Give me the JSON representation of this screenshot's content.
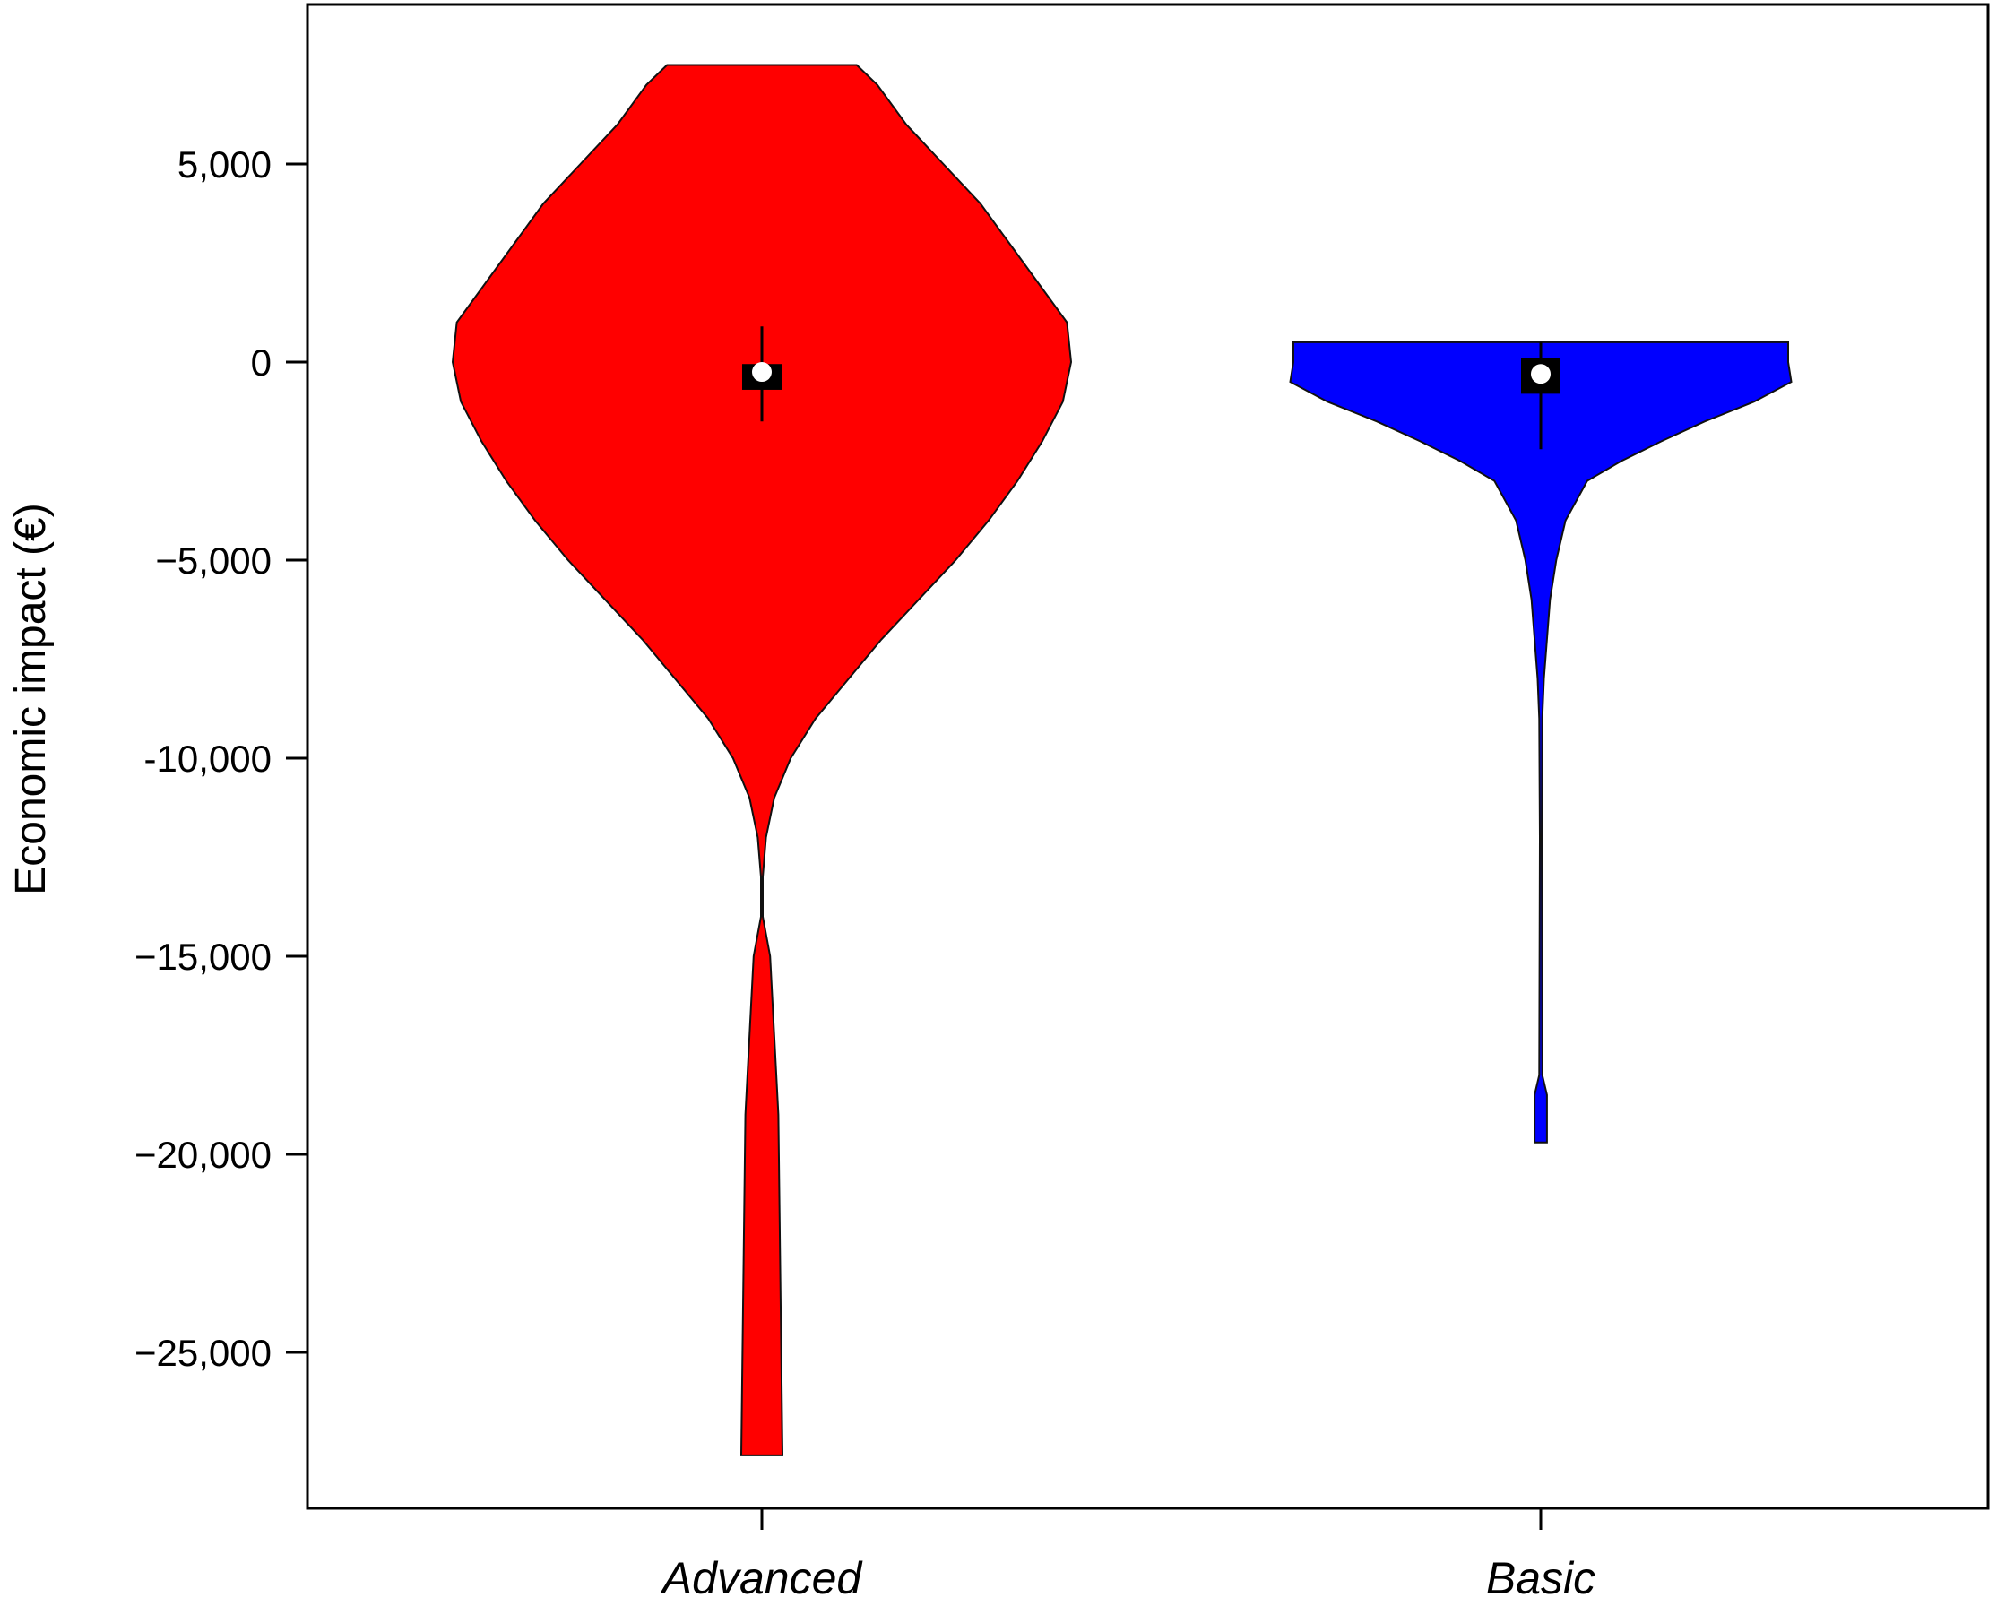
{
  "chart_data": {
    "type": "violin",
    "ylabel": "Economic impact (€)",
    "ylim": [
      -29000,
      9000
    ],
    "yticks": [
      5000,
      0,
      -5000,
      -10000,
      -15000,
      -20000,
      -25000
    ],
    "ytick_labels": [
      "5,000",
      "0",
      "−5,000",
      "-10,000",
      "−15,000",
      "−20,000",
      "−25,000"
    ],
    "grid": false,
    "categories": [
      "Advanced",
      "Basic"
    ],
    "series": [
      {
        "category": "Advanced",
        "color": "#ff0000",
        "min": -27600,
        "max": 7500,
        "median": -250,
        "q1": -700,
        "q3": -50,
        "whisker_low": -1500,
        "whisker_high": 900,
        "profile": [
          [
            7500,
            0.39
          ],
          [
            7000,
            0.34
          ],
          [
            6000,
            0.27
          ],
          [
            5000,
            0.18
          ],
          [
            4000,
            0.09
          ],
          [
            3000,
            0.02
          ],
          [
            2000,
            -0.05
          ],
          [
            1000,
            -0.12
          ],
          [
            0,
            -0.13
          ],
          [
            -1000,
            -0.11
          ],
          [
            -2000,
            -0.06
          ],
          [
            -3000,
            0.0
          ],
          [
            -4000,
            0.07
          ],
          [
            -5000,
            0.15
          ],
          [
            -6000,
            0.24
          ],
          [
            -7000,
            0.33
          ],
          [
            -8000,
            0.41
          ],
          [
            -9000,
            0.49
          ],
          [
            -10000,
            0.55
          ],
          [
            -11000,
            0.59
          ],
          [
            -12000,
            0.61
          ],
          [
            -13000,
            0.62
          ],
          [
            -14000,
            0.62
          ],
          [
            -15000,
            0.6
          ],
          [
            -19000,
            0.58
          ],
          [
            -27600,
            0.57
          ]
        ]
      },
      {
        "category": "Basic",
        "color": "#0000ff",
        "min": -19700,
        "max": 500,
        "median": -300,
        "q1": -800,
        "q3": 100,
        "whisker_low": -2200,
        "whisker_high": 500,
        "profile": [
          [
            500,
            0.8
          ],
          [
            0,
            0.8
          ],
          [
            -500,
            0.81
          ],
          [
            -1000,
            0.69
          ],
          [
            -1500,
            0.53
          ],
          [
            -2000,
            0.39
          ],
          [
            -2500,
            0.26
          ],
          [
            -3000,
            0.15
          ],
          [
            -4000,
            0.08
          ],
          [
            -5000,
            0.05
          ],
          [
            -6000,
            0.03
          ],
          [
            -7000,
            0.02
          ],
          [
            -8000,
            0.01
          ],
          [
            -9000,
            0.005
          ],
          [
            -12000,
            0.003
          ],
          [
            -18000,
            0.005
          ],
          [
            -18500,
            0.02
          ],
          [
            -19700,
            0.02
          ]
        ]
      }
    ]
  }
}
